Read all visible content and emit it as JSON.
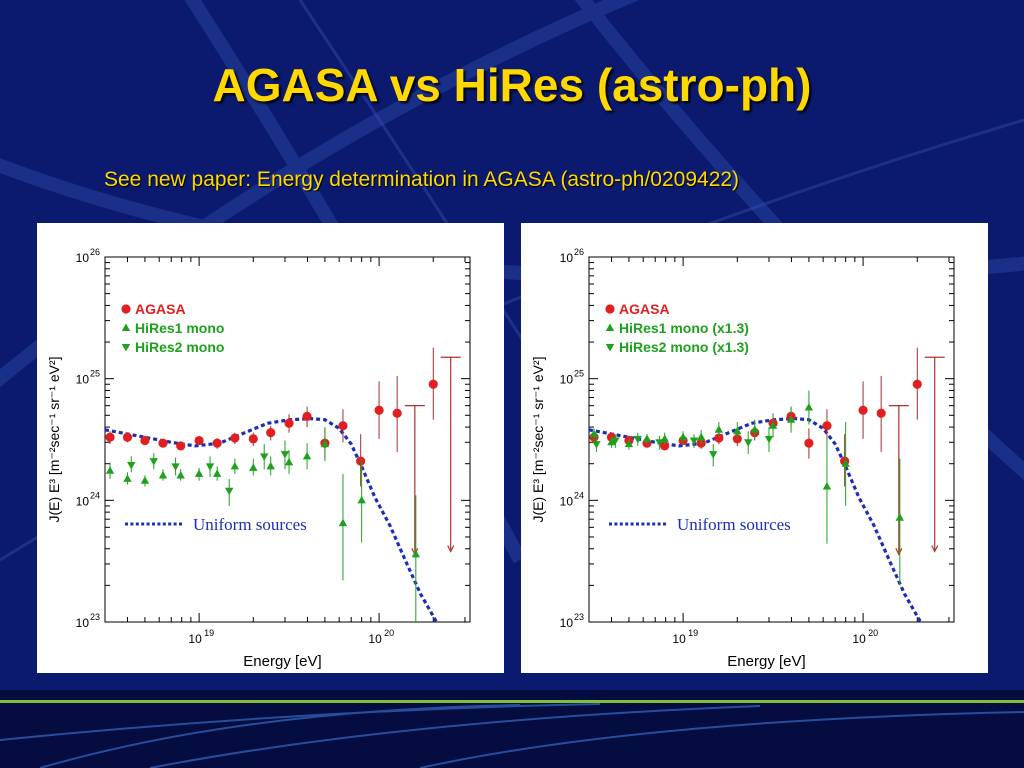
{
  "slide": {
    "title": "AGASA vs HiRes (astro-ph)",
    "subtitle": "See new paper: Energy determination in AGASA (astro-ph/0209422)"
  },
  "colors": {
    "background": "#0b1a6e",
    "title": "#ffd800",
    "agasa": "#e02020",
    "hires": "#1fa01f",
    "curve": "#1a2fb8",
    "upper_limit": "#b03030"
  },
  "chart_data": [
    {
      "type": "scatter",
      "xscale": "log",
      "yscale": "log",
      "xlabel": "Energy [eV]",
      "ylabel": "J(E) E³ [m⁻²sec⁻¹ sr⁻¹ eV²]",
      "xlim": [
        3e+18,
        3.2e+20
      ],
      "ylim": [
        1e+23,
        1e+26
      ],
      "x_ticks": [
        {
          "base": "10",
          "exp": "19",
          "value": 1e+19
        },
        {
          "base": "10",
          "exp": "20",
          "value": 1e+20
        }
      ],
      "y_ticks": [
        {
          "base": "10",
          "exp": "23",
          "value": 1e+23
        },
        {
          "base": "10",
          "exp": "24",
          "value": 1e+24
        },
        {
          "base": "10",
          "exp": "25",
          "value": 1e+25
        },
        {
          "base": "10",
          "exp": "26",
          "value": 1e+26
        }
      ],
      "legend": [
        {
          "label": "AGASA",
          "marker": "circle",
          "color": "#e02020"
        },
        {
          "label": "HiRes1 mono",
          "marker": "triangle-up",
          "color": "#1fa01f"
        },
        {
          "label": "HiRes2 mono",
          "marker": "triangle-down",
          "color": "#1fa01f"
        }
      ],
      "legend_position": "top-left",
      "curve_label": "Uniform sources",
      "series": [
        {
          "name": "AGASA",
          "marker": "circle",
          "color": "#e02020",
          "points": [
            {
              "x": 3.2e+18,
              "y": 3.3e+24,
              "lo": 2.9e+24,
              "hi": 3.7e+24
            },
            {
              "x": 4e+18,
              "y": 3.3e+24,
              "lo": 3e+24,
              "hi": 3.6e+24
            },
            {
              "x": 5e+18,
              "y": 3.1e+24,
              "lo": 2.9e+24,
              "hi": 3.4e+24
            },
            {
              "x": 6.3e+18,
              "y": 2.95e+24,
              "lo": 2.75e+24,
              "hi": 3.2e+24
            },
            {
              "x": 7.9e+18,
              "y": 2.8e+24,
              "lo": 2.6e+24,
              "hi": 3.05e+24
            },
            {
              "x": 1e+19,
              "y": 3.1e+24,
              "lo": 2.85e+24,
              "hi": 3.35e+24
            },
            {
              "x": 1.26e+19,
              "y": 2.95e+24,
              "lo": 2.65e+24,
              "hi": 3.25e+24
            },
            {
              "x": 1.58e+19,
              "y": 3.25e+24,
              "lo": 2.9e+24,
              "hi": 3.6e+24
            },
            {
              "x": 2e+19,
              "y": 3.2e+24,
              "lo": 2.8e+24,
              "hi": 3.6e+24
            },
            {
              "x": 2.5e+19,
              "y": 3.6e+24,
              "lo": 3.1e+24,
              "hi": 4.1e+24
            },
            {
              "x": 3.16e+19,
              "y": 4.3e+24,
              "lo": 3.6e+24,
              "hi": 5.1e+24
            },
            {
              "x": 3.98e+19,
              "y": 4.9e+24,
              "lo": 4e+24,
              "hi": 5.9e+24
            },
            {
              "x": 5e+19,
              "y": 2.95e+24,
              "lo": 2.2e+24,
              "hi": 3.9e+24
            },
            {
              "x": 6.3e+19,
              "y": 4.1e+24,
              "lo": 3e+24,
              "hi": 5.6e+24
            },
            {
              "x": 7.9e+19,
              "y": 2.1e+24,
              "lo": 1.3e+24,
              "hi": 3.5e+24
            },
            {
              "x": 1e+20,
              "y": 5.5e+24,
              "lo": 3.2e+24,
              "hi": 9.5e+24
            },
            {
              "x": 1.26e+20,
              "y": 5.2e+24,
              "lo": 2.5e+24,
              "hi": 1.05e+25
            },
            {
              "x": 2e+20,
              "y": 9e+24,
              "lo": 4.6e+24,
              "hi": 1.8e+25
            }
          ]
        },
        {
          "name": "HiRes1 mono",
          "marker": "triangle-up",
          "color": "#1fa01f",
          "points": [
            {
              "x": 3.2e+18,
              "y": 1.75e+24,
              "lo": 1.5e+24,
              "hi": 2.05e+24
            },
            {
              "x": 4e+18,
              "y": 1.5e+24,
              "lo": 1.35e+24,
              "hi": 1.7e+24
            },
            {
              "x": 5e+18,
              "y": 1.45e+24,
              "lo": 1.3e+24,
              "hi": 1.6e+24
            },
            {
              "x": 6.3e+18,
              "y": 1.6e+24,
              "lo": 1.45e+24,
              "hi": 1.8e+24
            },
            {
              "x": 7.9e+18,
              "y": 1.6e+24,
              "lo": 1.45e+24,
              "hi": 1.8e+24
            },
            {
              "x": 1e+19,
              "y": 1.65e+24,
              "lo": 1.45e+24,
              "hi": 1.85e+24
            },
            {
              "x": 1.26e+19,
              "y": 1.65e+24,
              "lo": 1.45e+24,
              "hi": 1.9e+24
            },
            {
              "x": 1.58e+19,
              "y": 1.9e+24,
              "lo": 1.65e+24,
              "hi": 2.2e+24
            },
            {
              "x": 2e+19,
              "y": 1.85e+24,
              "lo": 1.6e+24,
              "hi": 2.2e+24
            },
            {
              "x": 2.5e+19,
              "y": 1.9e+24,
              "lo": 1.6e+24,
              "hi": 2.3e+24
            },
            {
              "x": 3.16e+19,
              "y": 2.05e+24,
              "lo": 1.65e+24,
              "hi": 2.6e+24
            },
            {
              "x": 3.98e+19,
              "y": 2.3e+24,
              "lo": 1.8e+24,
              "hi": 2.95e+24
            },
            {
              "x": 5e+19,
              "y": 2.9e+24,
              "lo": 2.1e+24,
              "hi": 4e+24
            },
            {
              "x": 6.3e+19,
              "y": 6.5e+23,
              "lo": 2.2e+23,
              "hi": 1.65e+24
            },
            {
              "x": 8e+19,
              "y": 1e+24,
              "lo": 4.5e+23,
              "hi": 2.2e+24
            },
            {
              "x": 1.6e+20,
              "y": 3.6e+23,
              "lo": 1e+23,
              "hi": 1.1e+24
            }
          ]
        },
        {
          "name": "HiRes2 mono",
          "marker": "triangle-down",
          "color": "#1fa01f",
          "points": [
            {
              "x": 4.2e+18,
              "y": 1.95e+24,
              "lo": 1.7e+24,
              "hi": 2.3e+24
            },
            {
              "x": 5.6e+18,
              "y": 2.1e+24,
              "lo": 1.8e+24,
              "hi": 2.45e+24
            },
            {
              "x": 7.4e+18,
              "y": 1.9e+24,
              "lo": 1.6e+24,
              "hi": 2.25e+24
            },
            {
              "x": 1.15e+19,
              "y": 1.9e+24,
              "lo": 1.55e+24,
              "hi": 2.3e+24
            },
            {
              "x": 1.47e+19,
              "y": 1.2e+24,
              "lo": 9e+23,
              "hi": 1.5e+24
            },
            {
              "x": 2.3e+19,
              "y": 2.3e+24,
              "lo": 1.8e+24,
              "hi": 2.9e+24
            },
            {
              "x": 3e+19,
              "y": 2.4e+24,
              "lo": 1.8e+24,
              "hi": 3.1e+24
            }
          ]
        },
        {
          "name": "Uniform sources",
          "marker": "line",
          "color": "#1a2fb8",
          "points": [
            {
              "x": 3e+18,
              "y": 3.8e+24
            },
            {
              "x": 4.5e+18,
              "y": 3.4e+24
            },
            {
              "x": 7e+18,
              "y": 3e+24
            },
            {
              "x": 9.5e+18,
              "y": 2.8e+24
            },
            {
              "x": 1.3e+19,
              "y": 2.95e+24
            },
            {
              "x": 1.8e+19,
              "y": 3.6e+24
            },
            {
              "x": 2.4e+19,
              "y": 4.3e+24
            },
            {
              "x": 3.2e+19,
              "y": 4.6e+24
            },
            {
              "x": 4.2e+19,
              "y": 4.7e+24
            },
            {
              "x": 5e+19,
              "y": 4.6e+24
            },
            {
              "x": 6e+19,
              "y": 3.9e+24
            },
            {
              "x": 7e+19,
              "y": 2.9e+24
            },
            {
              "x": 8e+19,
              "y": 1.9e+24
            },
            {
              "x": 9.5e+19,
              "y": 1.05e+24
            },
            {
              "x": 1.15e+20,
              "y": 6.2e+23
            },
            {
              "x": 1.4e+20,
              "y": 3.2e+23
            },
            {
              "x": 1.7e+20,
              "y": 1.7e+23
            },
            {
              "x": 2.1e+20,
              "y": 9e+22
            }
          ]
        }
      ],
      "upper_limits": [
        {
          "x": 1.58e+20,
          "y": 6e+24,
          "to": 3.6e+23
        },
        {
          "x": 2.5e+20,
          "y": 1.5e+25,
          "to": 3.8e+23
        }
      ]
    },
    {
      "type": "scatter",
      "xscale": "log",
      "yscale": "log",
      "xlabel": "Energy [eV]",
      "ylabel": "J(E) E³ [m⁻²sec⁻¹ sr⁻¹ eV²]",
      "xlim": [
        3e+18,
        3.2e+20
      ],
      "ylim": [
        1e+23,
        1e+26
      ],
      "x_ticks": [
        {
          "base": "10",
          "exp": "19",
          "value": 1e+19
        },
        {
          "base": "10",
          "exp": "20",
          "value": 1e+20
        }
      ],
      "y_ticks": [
        {
          "base": "10",
          "exp": "23",
          "value": 1e+23
        },
        {
          "base": "10",
          "exp": "24",
          "value": 1e+24
        },
        {
          "base": "10",
          "exp": "25",
          "value": 1e+25
        },
        {
          "base": "10",
          "exp": "26",
          "value": 1e+26
        }
      ],
      "legend": [
        {
          "label": "AGASA",
          "marker": "circle",
          "color": "#e02020"
        },
        {
          "label": "HiRes1 mono (x1.3)",
          "marker": "triangle-up",
          "color": "#1fa01f"
        },
        {
          "label": "HiRes2 mono (x1.3)",
          "marker": "triangle-down",
          "color": "#1fa01f"
        }
      ],
      "legend_position": "top-left",
      "curve_label": "Uniform sources",
      "series": [
        {
          "name": "AGASA",
          "marker": "circle",
          "color": "#e02020",
          "points": [
            {
              "x": 3.2e+18,
              "y": 3.3e+24,
              "lo": 2.9e+24,
              "hi": 3.7e+24
            },
            {
              "x": 4e+18,
              "y": 3.3e+24,
              "lo": 3e+24,
              "hi": 3.6e+24
            },
            {
              "x": 5e+18,
              "y": 3.1e+24,
              "lo": 2.9e+24,
              "hi": 3.4e+24
            },
            {
              "x": 6.3e+18,
              "y": 2.95e+24,
              "lo": 2.75e+24,
              "hi": 3.2e+24
            },
            {
              "x": 7.9e+18,
              "y": 2.8e+24,
              "lo": 2.6e+24,
              "hi": 3.05e+24
            },
            {
              "x": 1e+19,
              "y": 3.1e+24,
              "lo": 2.85e+24,
              "hi": 3.35e+24
            },
            {
              "x": 1.26e+19,
              "y": 2.95e+24,
              "lo": 2.65e+24,
              "hi": 3.25e+24
            },
            {
              "x": 1.58e+19,
              "y": 3.25e+24,
              "lo": 2.9e+24,
              "hi": 3.6e+24
            },
            {
              "x": 2e+19,
              "y": 3.2e+24,
              "lo": 2.8e+24,
              "hi": 3.6e+24
            },
            {
              "x": 2.5e+19,
              "y": 3.6e+24,
              "lo": 3.1e+24,
              "hi": 4.1e+24
            },
            {
              "x": 3.16e+19,
              "y": 4.3e+24,
              "lo": 3.6e+24,
              "hi": 5.1e+24
            },
            {
              "x": 3.98e+19,
              "y": 4.9e+24,
              "lo": 4e+24,
              "hi": 5.9e+24
            },
            {
              "x": 5e+19,
              "y": 2.95e+24,
              "lo": 2.2e+24,
              "hi": 3.9e+24
            },
            {
              "x": 6.3e+19,
              "y": 4.1e+24,
              "lo": 3e+24,
              "hi": 5.6e+24
            },
            {
              "x": 7.9e+19,
              "y": 2.1e+24,
              "lo": 1.3e+24,
              "hi": 3.5e+24
            },
            {
              "x": 1e+20,
              "y": 5.5e+24,
              "lo": 3.2e+24,
              "hi": 9.5e+24
            },
            {
              "x": 1.26e+20,
              "y": 5.2e+24,
              "lo": 2.5e+24,
              "hi": 1.05e+25
            },
            {
              "x": 2e+20,
              "y": 9e+24,
              "lo": 4.6e+24,
              "hi": 1.8e+25
            }
          ]
        },
        {
          "name": "HiRes1 mono (x1.3)",
          "marker": "triangle-up",
          "color": "#1fa01f",
          "points": [
            {
              "x": 3.2e+18,
              "y": 3.5e+24,
              "lo": 3.1e+24,
              "hi": 3.9e+24
            },
            {
              "x": 4e+18,
              "y": 3e+24,
              "lo": 2.7e+24,
              "hi": 3.3e+24
            },
            {
              "x": 5e+18,
              "y": 2.9e+24,
              "lo": 2.6e+24,
              "hi": 3.2e+24
            },
            {
              "x": 6.3e+18,
              "y": 3.2e+24,
              "lo": 2.9e+24,
              "hi": 3.5e+24
            },
            {
              "x": 7.9e+18,
              "y": 3.2e+24,
              "lo": 2.9e+24,
              "hi": 3.6e+24
            },
            {
              "x": 1e+19,
              "y": 3.3e+24,
              "lo": 2.9e+24,
              "hi": 3.7e+24
            },
            {
              "x": 1.26e+19,
              "y": 3.3e+24,
              "lo": 2.9e+24,
              "hi": 3.8e+24
            },
            {
              "x": 1.58e+19,
              "y": 3.8e+24,
              "lo": 3.3e+24,
              "hi": 4.4e+24
            },
            {
              "x": 2e+19,
              "y": 3.7e+24,
              "lo": 3.2e+24,
              "hi": 4.4e+24
            },
            {
              "x": 2.5e+19,
              "y": 3.8e+24,
              "lo": 3.2e+24,
              "hi": 4.6e+24
            },
            {
              "x": 3.16e+19,
              "y": 4.1e+24,
              "lo": 3.3e+24,
              "hi": 5.2e+24
            },
            {
              "x": 3.98e+19,
              "y": 4.6e+24,
              "lo": 3.6e+24,
              "hi": 5.9e+24
            },
            {
              "x": 5e+19,
              "y": 5.8e+24,
              "lo": 4.2e+24,
              "hi": 8e+24
            },
            {
              "x": 6.3e+19,
              "y": 1.3e+24,
              "lo": 4.4e+23,
              "hi": 3.3e+24
            },
            {
              "x": 8e+19,
              "y": 2e+24,
              "lo": 9e+23,
              "hi": 4.4e+24
            },
            {
              "x": 1.6e+20,
              "y": 7.2e+23,
              "lo": 2e+23,
              "hi": 2.2e+24
            }
          ]
        },
        {
          "name": "HiRes2 mono (x1.3)",
          "marker": "triangle-down",
          "color": "#1fa01f",
          "points": [
            {
              "x": 3.3e+18,
              "y": 2.9e+24,
              "lo": 2.5e+24,
              "hi": 3.3e+24
            },
            {
              "x": 4.2e+18,
              "y": 3.1e+24,
              "lo": 2.7e+24,
              "hi": 3.5e+24
            },
            {
              "x": 5.6e+18,
              "y": 3.2e+24,
              "lo": 2.8e+24,
              "hi": 3.6e+24
            },
            {
              "x": 7.4e+18,
              "y": 3e+24,
              "lo": 2.6e+24,
              "hi": 3.4e+24
            },
            {
              "x": 1.15e+19,
              "y": 3.1e+24,
              "lo": 2.7e+24,
              "hi": 3.5e+24
            },
            {
              "x": 1.47e+19,
              "y": 2.4e+24,
              "lo": 1.9e+24,
              "hi": 2.9e+24
            },
            {
              "x": 2.3e+19,
              "y": 3e+24,
              "lo": 2.4e+24,
              "hi": 3.7e+24
            },
            {
              "x": 3e+19,
              "y": 3.2e+24,
              "lo": 2.5e+24,
              "hi": 4e+24
            }
          ]
        },
        {
          "name": "Uniform sources",
          "marker": "line",
          "color": "#1a2fb8",
          "points": [
            {
              "x": 3e+18,
              "y": 3.8e+24
            },
            {
              "x": 4.5e+18,
              "y": 3.4e+24
            },
            {
              "x": 7e+18,
              "y": 3e+24
            },
            {
              "x": 9.5e+18,
              "y": 2.8e+24
            },
            {
              "x": 1.3e+19,
              "y": 2.95e+24
            },
            {
              "x": 1.8e+19,
              "y": 3.6e+24
            },
            {
              "x": 2.4e+19,
              "y": 4.3e+24
            },
            {
              "x": 3.2e+19,
              "y": 4.6e+24
            },
            {
              "x": 4.2e+19,
              "y": 4.7e+24
            },
            {
              "x": 5e+19,
              "y": 4.6e+24
            },
            {
              "x": 6e+19,
              "y": 3.9e+24
            },
            {
              "x": 7e+19,
              "y": 2.9e+24
            },
            {
              "x": 8e+19,
              "y": 1.9e+24
            },
            {
              "x": 9.5e+19,
              "y": 1.05e+24
            },
            {
              "x": 1.15e+20,
              "y": 6.2e+23
            },
            {
              "x": 1.4e+20,
              "y": 3.2e+23
            },
            {
              "x": 1.7e+20,
              "y": 1.7e+23
            },
            {
              "x": 2.1e+20,
              "y": 9e+22
            }
          ]
        }
      ],
      "upper_limits": [
        {
          "x": 1.58e+20,
          "y": 6e+24,
          "to": 3.6e+23
        },
        {
          "x": 2.5e+20,
          "y": 1.5e+25,
          "to": 3.8e+23
        }
      ]
    }
  ]
}
